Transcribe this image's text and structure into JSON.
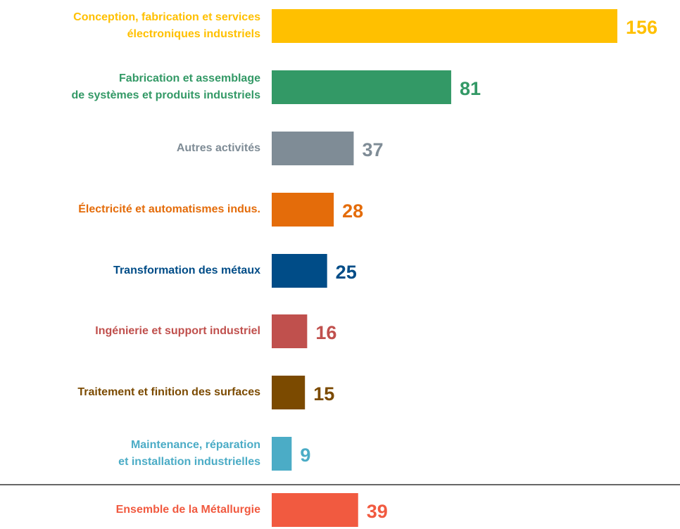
{
  "chart_data": {
    "type": "bar",
    "orientation": "horizontal",
    "categories": [
      "Conception, fabrication et services\nélectroniques industriels",
      "Fabrication et assemblage\nde systèmes et produits industriels",
      "Autres activités",
      "Électricité et automatismes indus.",
      "Transformation des métaux",
      "Ingénierie et support industriel",
      "Traitement et finition des surfaces",
      "Maintenance, réparation\net installation industrielles",
      "Ensemble de la Métallurgie"
    ],
    "values": [
      156,
      81,
      37,
      28,
      25,
      16,
      15,
      9,
      39
    ],
    "colors": [
      "#FFC000",
      "#339966",
      "#7F8C96",
      "#E46C0A",
      "#004C87",
      "#C0504D",
      "#7B4A00",
      "#4BACC6",
      "#F15A40"
    ]
  }
}
